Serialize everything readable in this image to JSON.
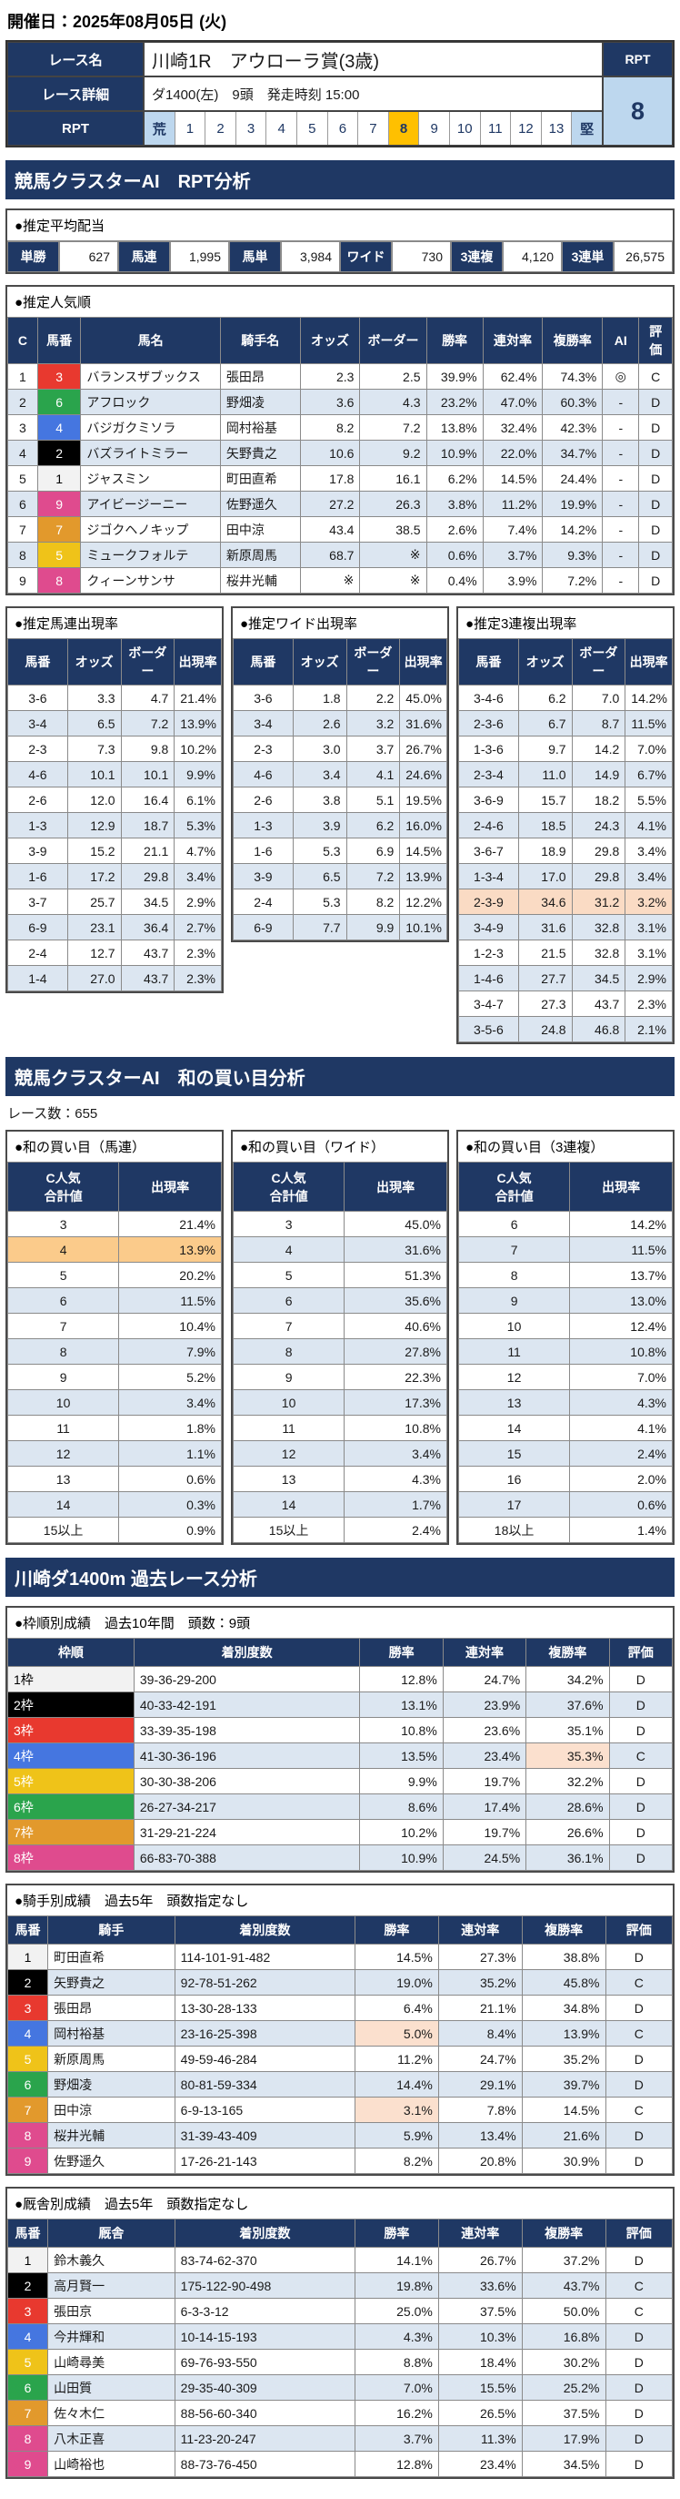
{
  "colors": {
    "navy": "#1F3864",
    "row_alt": "#DCE6F1",
    "highlight_cell": "#FBE0CE",
    "highlight_row": "#FADBC4",
    "highlight_row_strong": "#FBCB8B",
    "rpt_selected": "#FFC000",
    "rpt_scale_end": "#BDD7EE"
  },
  "header": {
    "date": "開催日：2025年08月05日 (火)"
  },
  "race": {
    "name_label": "レース名",
    "name": "川崎1R　アウローラ賞(3歳)",
    "detail_label": "レース詳細",
    "detail": "ダ1400(左)　9頭　発走時刻 15:00",
    "rpt_row_label": "RPT",
    "rpt_corner_label": "RPT",
    "rpt_value": "8",
    "scale": [
      {
        "v": "荒",
        "t": "end"
      },
      {
        "v": "1"
      },
      {
        "v": "2"
      },
      {
        "v": "3"
      },
      {
        "v": "4"
      },
      {
        "v": "5"
      },
      {
        "v": "6"
      },
      {
        "v": "7"
      },
      {
        "v": "8",
        "t": "sel"
      },
      {
        "v": "9"
      },
      {
        "v": "10"
      },
      {
        "v": "11"
      },
      {
        "v": "12"
      },
      {
        "v": "13"
      },
      {
        "v": "堅",
        "t": "end"
      }
    ]
  },
  "rpt_section": {
    "title": "競馬クラスターAI　RPT分析",
    "payout_title": "●推定平均配当",
    "payouts": [
      {
        "type": "単勝",
        "value": "627"
      },
      {
        "type": "馬連",
        "value": "1,995"
      },
      {
        "type": "馬単",
        "value": "3,984"
      },
      {
        "type": "ワイド",
        "value": "730"
      },
      {
        "type": "3連複",
        "value": "4,120"
      },
      {
        "type": "3連単",
        "value": "26,575"
      }
    ],
    "popular": {
      "title": "●推定人気順",
      "headers": [
        "C",
        "馬番",
        "馬名",
        "騎手名",
        "オッズ",
        "ボーダー",
        "勝率",
        "連対率",
        "複勝率",
        "AI",
        "評価"
      ],
      "rows": [
        {
          "c": "1",
          "num": "3",
          "horse": "バランスザブックス",
          "jockey": "張田昂",
          "odds": "2.3",
          "border": "2.5",
          "win": "39.9%",
          "ren": "62.4%",
          "fuku": "74.3%",
          "ai": "◎",
          "ev": "C"
        },
        {
          "c": "2",
          "num": "6",
          "horse": "アフロック",
          "jockey": "野畑凌",
          "odds": "3.6",
          "border": "4.3",
          "win": "23.2%",
          "ren": "47.0%",
          "fuku": "60.3%",
          "ai": "-",
          "ev": "D"
        },
        {
          "c": "3",
          "num": "4",
          "horse": "バジガクミソラ",
          "jockey": "岡村裕基",
          "odds": "8.2",
          "border": "7.2",
          "win": "13.8%",
          "ren": "32.4%",
          "fuku": "42.3%",
          "ai": "-",
          "ev": "D"
        },
        {
          "c": "4",
          "num": "2",
          "horse": "バズライトミラー",
          "jockey": "矢野貴之",
          "odds": "10.6",
          "border": "9.2",
          "win": "10.9%",
          "ren": "22.0%",
          "fuku": "34.7%",
          "ai": "-",
          "ev": "D"
        },
        {
          "c": "5",
          "num": "1",
          "horse": "ジャスミン",
          "jockey": "町田直希",
          "odds": "17.8",
          "border": "16.1",
          "win": "6.2%",
          "ren": "14.5%",
          "fuku": "24.4%",
          "ai": "-",
          "ev": "D"
        },
        {
          "c": "6",
          "num": "9",
          "horse": "アイビージーニー",
          "jockey": "佐野遥久",
          "odds": "27.2",
          "border": "26.3",
          "win": "3.8%",
          "ren": "11.2%",
          "fuku": "19.9%",
          "ai": "-",
          "ev": "D"
        },
        {
          "c": "7",
          "num": "7",
          "horse": "ジゴクヘノキップ",
          "jockey": "田中涼",
          "odds": "43.4",
          "border": "38.5",
          "win": "2.6%",
          "ren": "7.4%",
          "fuku": "14.2%",
          "ai": "-",
          "ev": "D"
        },
        {
          "c": "8",
          "num": "5",
          "horse": "ミュークフォルテ",
          "jockey": "新原周馬",
          "odds": "68.7",
          "border": "※",
          "win": "0.6%",
          "ren": "3.7%",
          "fuku": "9.3%",
          "ai": "-",
          "ev": "D"
        },
        {
          "c": "9",
          "num": "8",
          "horse": "クィーンサンサ",
          "jockey": "桜井光輔",
          "odds": "※",
          "border": "※",
          "win": "0.4%",
          "ren": "3.9%",
          "fuku": "7.2%",
          "ai": "-",
          "ev": "D"
        }
      ]
    },
    "umaren": {
      "title": "●推定馬連出現率",
      "headers": [
        "馬番",
        "オッズ",
        "ボーダー",
        "出現率"
      ],
      "rows": [
        {
          "pair": "3-6",
          "odds": "3.3",
          "border": "4.7",
          "rate": "21.4%"
        },
        {
          "pair": "3-4",
          "odds": "6.5",
          "border": "7.2",
          "rate": "13.9%"
        },
        {
          "pair": "2-3",
          "odds": "7.3",
          "border": "9.8",
          "rate": "10.2%"
        },
        {
          "pair": "4-6",
          "odds": "10.1",
          "border": "10.1",
          "rate": "9.9%"
        },
        {
          "pair": "2-6",
          "odds": "12.0",
          "border": "16.4",
          "rate": "6.1%"
        },
        {
          "pair": "1-3",
          "odds": "12.9",
          "border": "18.7",
          "rate": "5.3%"
        },
        {
          "pair": "3-9",
          "odds": "15.2",
          "border": "21.1",
          "rate": "4.7%"
        },
        {
          "pair": "1-6",
          "odds": "17.2",
          "border": "29.8",
          "rate": "3.4%"
        },
        {
          "pair": "3-7",
          "odds": "25.7",
          "border": "34.5",
          "rate": "2.9%"
        },
        {
          "pair": "6-9",
          "odds": "23.1",
          "border": "36.4",
          "rate": "2.7%"
        },
        {
          "pair": "2-4",
          "odds": "12.7",
          "border": "43.7",
          "rate": "2.3%"
        },
        {
          "pair": "1-4",
          "odds": "27.0",
          "border": "43.7",
          "rate": "2.3%"
        }
      ]
    },
    "wide": {
      "title": "●推定ワイド出現率",
      "headers": [
        "馬番",
        "オッズ",
        "ボーダー",
        "出現率"
      ],
      "rows": [
        {
          "pair": "3-6",
          "odds": "1.8",
          "border": "2.2",
          "rate": "45.0%"
        },
        {
          "pair": "3-4",
          "odds": "2.6",
          "border": "3.2",
          "rate": "31.6%"
        },
        {
          "pair": "2-3",
          "odds": "3.0",
          "border": "3.7",
          "rate": "26.7%"
        },
        {
          "pair": "4-6",
          "odds": "3.4",
          "border": "4.1",
          "rate": "24.6%"
        },
        {
          "pair": "2-6",
          "odds": "3.8",
          "border": "5.1",
          "rate": "19.5%"
        },
        {
          "pair": "1-3",
          "odds": "3.9",
          "border": "6.2",
          "rate": "16.0%"
        },
        {
          "pair": "1-6",
          "odds": "5.3",
          "border": "6.9",
          "rate": "14.5%"
        },
        {
          "pair": "3-9",
          "odds": "6.5",
          "border": "7.2",
          "rate": "13.9%"
        },
        {
          "pair": "2-4",
          "odds": "5.3",
          "border": "8.2",
          "rate": "12.2%"
        },
        {
          "pair": "6-9",
          "odds": "7.7",
          "border": "9.9",
          "rate": "10.1%"
        }
      ]
    },
    "sanrenpuku": {
      "title": "●推定3連複出現率",
      "headers": [
        "馬番",
        "オッズ",
        "ボーダー",
        "出現率"
      ],
      "rows": [
        {
          "pair": "3-4-6",
          "odds": "6.2",
          "border": "7.0",
          "rate": "14.2%"
        },
        {
          "pair": "2-3-6",
          "odds": "6.7",
          "border": "8.7",
          "rate": "11.5%"
        },
        {
          "pair": "1-3-6",
          "odds": "9.7",
          "border": "14.2",
          "rate": "7.0%"
        },
        {
          "pair": "2-3-4",
          "odds": "11.0",
          "border": "14.9",
          "rate": "6.7%"
        },
        {
          "pair": "3-6-9",
          "odds": "15.7",
          "border": "18.2",
          "rate": "5.5%"
        },
        {
          "pair": "2-4-6",
          "odds": "18.5",
          "border": "24.3",
          "rate": "4.1%"
        },
        {
          "pair": "3-6-7",
          "odds": "18.9",
          "border": "29.8",
          "rate": "3.4%"
        },
        {
          "pair": "1-3-4",
          "odds": "17.0",
          "border": "29.8",
          "rate": "3.4%"
        },
        {
          "pair": "2-3-9",
          "odds": "34.6",
          "border": "31.2",
          "rate": "3.2%",
          "_row": "hlrow"
        },
        {
          "pair": "3-4-9",
          "odds": "31.6",
          "border": "32.8",
          "rate": "3.1%"
        },
        {
          "pair": "1-2-3",
          "odds": "21.5",
          "border": "32.8",
          "rate": "3.1%"
        },
        {
          "pair": "1-4-6",
          "odds": "27.7",
          "border": "34.5",
          "rate": "2.9%"
        },
        {
          "pair": "3-4-7",
          "odds": "27.3",
          "border": "43.7",
          "rate": "2.3%"
        },
        {
          "pair": "3-5-6",
          "odds": "24.8",
          "border": "46.8",
          "rate": "2.1%"
        }
      ]
    }
  },
  "wa_section": {
    "title": "競馬クラスターAI　和の買い目分析",
    "race_count": "レース数：655",
    "umaren": {
      "title": "●和の買い目（馬連）",
      "headers": [
        "C人気\n合計値",
        "出現率"
      ],
      "rows": [
        {
          "sum": "3",
          "rate": "21.4%"
        },
        {
          "sum": "4",
          "rate": "13.9%",
          "_row": "hlrow2"
        },
        {
          "sum": "5",
          "rate": "20.2%"
        },
        {
          "sum": "6",
          "rate": "11.5%"
        },
        {
          "sum": "7",
          "rate": "10.4%"
        },
        {
          "sum": "8",
          "rate": "7.9%"
        },
        {
          "sum": "9",
          "rate": "5.2%"
        },
        {
          "sum": "10",
          "rate": "3.4%"
        },
        {
          "sum": "11",
          "rate": "1.8%"
        },
        {
          "sum": "12",
          "rate": "1.1%"
        },
        {
          "sum": "13",
          "rate": "0.6%"
        },
        {
          "sum": "14",
          "rate": "0.3%"
        },
        {
          "sum": "15以上",
          "rate": "0.9%"
        }
      ]
    },
    "wide": {
      "title": "●和の買い目（ワイド）",
      "headers": [
        "C人気\n合計値",
        "出現率"
      ],
      "rows": [
        {
          "sum": "3",
          "rate": "45.0%"
        },
        {
          "sum": "4",
          "rate": "31.6%"
        },
        {
          "sum": "5",
          "rate": "51.3%"
        },
        {
          "sum": "6",
          "rate": "35.6%"
        },
        {
          "sum": "7",
          "rate": "40.6%"
        },
        {
          "sum": "8",
          "rate": "27.8%"
        },
        {
          "sum": "9",
          "rate": "22.3%"
        },
        {
          "sum": "10",
          "rate": "17.3%"
        },
        {
          "sum": "11",
          "rate": "10.8%"
        },
        {
          "sum": "12",
          "rate": "3.4%"
        },
        {
          "sum": "13",
          "rate": "4.3%"
        },
        {
          "sum": "14",
          "rate": "1.7%"
        },
        {
          "sum": "15以上",
          "rate": "2.4%"
        }
      ]
    },
    "sanrenpuku": {
      "title": "●和の買い目（3連複）",
      "headers": [
        "C人気\n合計値",
        "出現率"
      ],
      "rows": [
        {
          "sum": "6",
          "rate": "14.2%"
        },
        {
          "sum": "7",
          "rate": "11.5%"
        },
        {
          "sum": "8",
          "rate": "13.7%"
        },
        {
          "sum": "9",
          "rate": "13.0%"
        },
        {
          "sum": "10",
          "rate": "12.4%"
        },
        {
          "sum": "11",
          "rate": "10.8%"
        },
        {
          "sum": "12",
          "rate": "7.0%"
        },
        {
          "sum": "13",
          "rate": "4.3%"
        },
        {
          "sum": "14",
          "rate": "4.1%"
        },
        {
          "sum": "15",
          "rate": "2.4%"
        },
        {
          "sum": "16",
          "rate": "2.0%"
        },
        {
          "sum": "17",
          "rate": "0.6%"
        },
        {
          "sum": "18以上",
          "rate": "1.4%"
        }
      ]
    }
  },
  "past_section": {
    "title": "川崎ダ1400m 過去レース分析",
    "waku": {
      "title": "●枠順別成績　過去10年間　頭数：9頭",
      "headers": [
        "枠順",
        "着別度数",
        "勝率",
        "連対率",
        "複勝率",
        "評価"
      ],
      "rows": [
        {
          "waku": "1枠",
          "rec": "39-36-29-200",
          "win": "12.8%",
          "ren": "24.7%",
          "fuku": "34.2%",
          "ev": "D"
        },
        {
          "waku": "2枠",
          "rec": "40-33-42-191",
          "win": "13.1%",
          "ren": "23.9%",
          "fuku": "37.6%",
          "ev": "D"
        },
        {
          "waku": "3枠",
          "rec": "33-39-35-198",
          "win": "10.8%",
          "ren": "23.6%",
          "fuku": "35.1%",
          "ev": "D"
        },
        {
          "waku": "4枠",
          "rec": "41-30-36-196",
          "win": "13.5%",
          "ren": "23.4%",
          "fuku": "35.3%",
          "ev": "C",
          "_hl": [
            "fuku"
          ]
        },
        {
          "waku": "5枠",
          "rec": "30-30-38-206",
          "win": "9.9%",
          "ren": "19.7%",
          "fuku": "32.2%",
          "ev": "D"
        },
        {
          "waku": "6枠",
          "rec": "26-27-34-217",
          "win": "8.6%",
          "ren": "17.4%",
          "fuku": "28.6%",
          "ev": "D"
        },
        {
          "waku": "7枠",
          "rec": "31-29-21-224",
          "win": "10.2%",
          "ren": "19.7%",
          "fuku": "26.6%",
          "ev": "D"
        },
        {
          "waku": "8枠",
          "rec": "66-83-70-388",
          "win": "10.9%",
          "ren": "24.5%",
          "fuku": "36.1%",
          "ev": "D"
        }
      ]
    },
    "jockey": {
      "title": "●騎手別成績　過去5年　頭数指定なし",
      "headers": [
        "馬番",
        "騎手",
        "着別度数",
        "勝率",
        "連対率",
        "複勝率",
        "評価"
      ],
      "rows": [
        {
          "num": "1",
          "name": "町田直希",
          "rec": "114-101-91-482",
          "win": "14.5%",
          "ren": "27.3%",
          "fuku": "38.8%",
          "ev": "D"
        },
        {
          "num": "2",
          "name": "矢野貴之",
          "rec": "92-78-51-262",
          "win": "19.0%",
          "ren": "35.2%",
          "fuku": "45.8%",
          "ev": "C"
        },
        {
          "num": "3",
          "name": "張田昂",
          "rec": "13-30-28-133",
          "win": "6.4%",
          "ren": "21.1%",
          "fuku": "34.8%",
          "ev": "D"
        },
        {
          "num": "4",
          "name": "岡村裕基",
          "rec": "23-16-25-398",
          "win": "5.0%",
          "ren": "8.4%",
          "fuku": "13.9%",
          "ev": "C",
          "_hl": [
            "win"
          ]
        },
        {
          "num": "5",
          "name": "新原周馬",
          "rec": "49-59-46-284",
          "win": "11.2%",
          "ren": "24.7%",
          "fuku": "35.2%",
          "ev": "D"
        },
        {
          "num": "6",
          "name": "野畑凌",
          "rec": "80-81-59-334",
          "win": "14.4%",
          "ren": "29.1%",
          "fuku": "39.7%",
          "ev": "D"
        },
        {
          "num": "7",
          "name": "田中涼",
          "rec": "6-9-13-165",
          "win": "3.1%",
          "ren": "7.8%",
          "fuku": "14.5%",
          "ev": "C",
          "_hl": [
            "win"
          ]
        },
        {
          "num": "8",
          "name": "桜井光輔",
          "rec": "31-39-43-409",
          "win": "5.9%",
          "ren": "13.4%",
          "fuku": "21.6%",
          "ev": "D"
        },
        {
          "num": "9",
          "name": "佐野遥久",
          "rec": "17-26-21-143",
          "win": "8.2%",
          "ren": "20.8%",
          "fuku": "30.9%",
          "ev": "D"
        }
      ]
    },
    "stable": {
      "title": "●厩舎別成績　過去5年　頭数指定なし",
      "headers": [
        "馬番",
        "厩舎",
        "着別度数",
        "勝率",
        "連対率",
        "複勝率",
        "評価"
      ],
      "rows": [
        {
          "num": "1",
          "name": "鈴木義久",
          "rec": "83-74-62-370",
          "win": "14.1%",
          "ren": "26.7%",
          "fuku": "37.2%",
          "ev": "D"
        },
        {
          "num": "2",
          "name": "高月賢一",
          "rec": "175-122-90-498",
          "win": "19.8%",
          "ren": "33.6%",
          "fuku": "43.7%",
          "ev": "C"
        },
        {
          "num": "3",
          "name": "張田京",
          "rec": "6-3-3-12",
          "win": "25.0%",
          "ren": "37.5%",
          "fuku": "50.0%",
          "ev": "C"
        },
        {
          "num": "4",
          "name": "今井輝和",
          "rec": "10-14-15-193",
          "win": "4.3%",
          "ren": "10.3%",
          "fuku": "16.8%",
          "ev": "D"
        },
        {
          "num": "5",
          "name": "山崎尋美",
          "rec": "69-76-93-550",
          "win": "8.8%",
          "ren": "18.4%",
          "fuku": "30.2%",
          "ev": "D"
        },
        {
          "num": "6",
          "name": "山田質",
          "rec": "29-35-40-309",
          "win": "7.0%",
          "ren": "15.5%",
          "fuku": "25.2%",
          "ev": "D"
        },
        {
          "num": "7",
          "name": "佐々木仁",
          "rec": "88-56-60-340",
          "win": "16.2%",
          "ren": "26.5%",
          "fuku": "37.5%",
          "ev": "D"
        },
        {
          "num": "8",
          "name": "八木正喜",
          "rec": "11-23-20-247",
          "win": "3.7%",
          "ren": "11.3%",
          "fuku": "17.9%",
          "ev": "D"
        },
        {
          "num": "9",
          "name": "山崎裕也",
          "rec": "88-73-76-450",
          "win": "12.8%",
          "ren": "23.4%",
          "fuku": "34.5%",
          "ev": "D"
        }
      ]
    }
  }
}
